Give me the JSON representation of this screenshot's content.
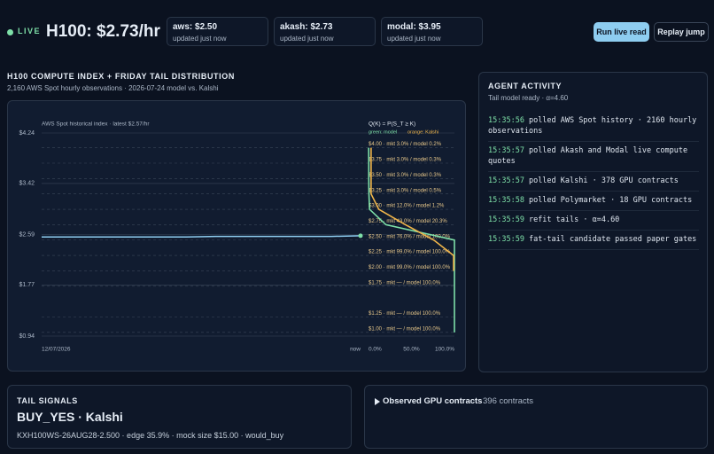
{
  "header": {
    "live": "LIVE",
    "price": "H100: $2.73/hr",
    "cards": [
      {
        "title": "aws: $2.50",
        "sub": "updated just now"
      },
      {
        "title": "akash: $2.73",
        "sub": "updated just now"
      },
      {
        "title": "modal: $3.95",
        "sub": "updated just now"
      }
    ],
    "buttons": [
      "Run live read",
      "Replay jump"
    ]
  },
  "section": {
    "title": "H100 COMPUTE INDEX + FRIDAY TAIL DISTRIBUTION",
    "subtitle": "2,160 AWS Spot hourly observations · 2026-07-24 model vs. Kalshi"
  },
  "chart_data": {
    "type": "line",
    "title": "AWS Spot historical index · latest $2.57/hr",
    "dist_title": "Q(K) = P(S_T ≥ K)",
    "ylim": [
      0.94,
      4.24
    ],
    "yticks": [
      {
        "value": 4.24,
        "label": "$4.24"
      },
      {
        "value": 3.42,
        "label": "$3.42"
      },
      {
        "value": 2.59,
        "label": "$2.59"
      },
      {
        "value": 1.77,
        "label": "$1.77"
      },
      {
        "value": 0.94,
        "label": "$0.94"
      }
    ],
    "categories": [
      "12/07/2026",
      null,
      null,
      null,
      null,
      null,
      null,
      null,
      null,
      null,
      null,
      "now"
    ],
    "series": [
      {
        "name": "AWS Spot",
        "color": "#8ecdf0",
        "values": [
          2.55,
          2.55,
          2.55,
          2.55,
          2.55,
          2.55,
          2.56,
          2.56,
          2.56,
          2.56,
          2.56,
          2.57
        ]
      }
    ],
    "dist": {
      "xlim": [
        0,
        100
      ],
      "xticks": [
        {
          "value": 0,
          "label": "0.0%"
        },
        {
          "value": 50,
          "label": "50.0%"
        },
        {
          "value": 100,
          "label": "100.0%"
        }
      ],
      "strikes": [
        4.0,
        3.75,
        3.5,
        3.25,
        3.0,
        2.75,
        2.5,
        2.25,
        2.0,
        1.75,
        1.25,
        1.0
      ],
      "strike_labels": [
        "$4.00 · mkt 3.0% / model 0.2%",
        "$3.75 · mkt 3.0% / model 0.3%",
        "$3.50 · mkt 3.0% / model 0.3%",
        "$3.25 · mkt 3.0% / model 0.5%",
        "$3.00 · mkt 12.0% / model 1.2%",
        "$2.75 · mkt 43.0% / model 20.3%",
        "$2.50 · mkt 76.0% / model 100.0%",
        "$2.25 · mkt 99.0% / model 100.0%",
        "$2.00 · mkt 99.0% / model 100.0%",
        "$1.75 · mkt — / model 100.0%",
        "$1.25 · mkt — / model 100.0%",
        "$1.00 · mkt — / model 100.0%"
      ],
      "series": [
        {
          "name": "green: model",
          "color": "#7ee0a8",
          "values": [
            0.2,
            0.3,
            0.3,
            0.5,
            1.2,
            20.3,
            100.0,
            100.0,
            100.0,
            100.0,
            100.0,
            100.0
          ]
        },
        {
          "name": "orange: Kalshi",
          "color": "#f0b54a",
          "values": [
            3.0,
            3.0,
            3.0,
            3.0,
            12.0,
            43.0,
            76.0,
            99.0,
            99.0,
            null,
            null,
            null
          ]
        }
      ]
    }
  },
  "activity": {
    "title": "AGENT ACTIVITY",
    "subtitle": "Tail model ready · α=4.60",
    "entries": [
      {
        "time": "15:35:56",
        "text": "polled AWS Spot history · 2160 hourly observations"
      },
      {
        "time": "15:35:57",
        "text": "polled Akash and Modal live compute quotes"
      },
      {
        "time": "15:35:57",
        "text": "polled Kalshi · 378 GPU contracts"
      },
      {
        "time": "15:35:58",
        "text": "polled Polymarket · 18 GPU contracts"
      },
      {
        "time": "15:35:59",
        "text": "refit tails · α=4.60"
      },
      {
        "time": "15:35:59",
        "text": "fat-tail candidate passed paper gates"
      }
    ]
  },
  "signals": {
    "title": "TAIL SIGNALS",
    "headline": "BUY_YES · Kalshi",
    "detail": "KXH100WS-26AUG28-2.500 · edge 35.9% · mock size $15.00 · would_buy"
  },
  "contracts": {
    "title": "Observed GPU contracts",
    "count": "396 contracts"
  }
}
